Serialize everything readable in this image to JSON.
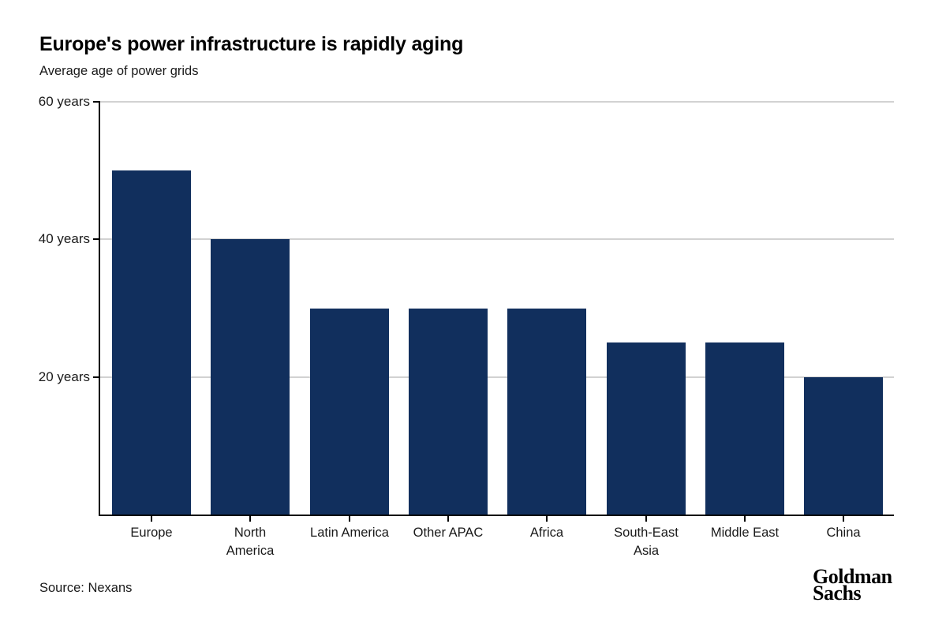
{
  "header": {
    "title": "Europe's power infrastructure is rapidly aging",
    "subtitle": "Average age of power grids"
  },
  "chart_data": {
    "type": "bar",
    "title": "Europe's power infrastructure is rapidly aging",
    "subtitle": "Average age of power grids",
    "categories": [
      "Europe",
      "North America",
      "Latin America",
      "Other APAC",
      "Africa",
      "South-East Asia",
      "Middle East",
      "China"
    ],
    "category_label_lines": [
      [
        "Europe"
      ],
      [
        "North",
        "America"
      ],
      [
        "Latin America"
      ],
      [
        "Other APAC"
      ],
      [
        "Africa"
      ],
      [
        "South-East",
        "Asia"
      ],
      [
        "Middle East"
      ],
      [
        "China"
      ]
    ],
    "values": [
      50,
      40,
      30,
      30,
      30,
      25,
      25,
      20
    ],
    "unit": "years",
    "xlabel": "",
    "ylabel": "",
    "ylim": [
      0,
      60
    ],
    "y_ticks": [
      20,
      40,
      60
    ],
    "y_tick_labels": [
      "20 years",
      "40 years",
      "60 years"
    ],
    "grid": true,
    "legend": null,
    "bar_color": "#112f5d",
    "gridline_color": "#d2d2d2",
    "axis_color": "#000000",
    "source": "Source: Nexans"
  },
  "footer": {
    "source": "Source: Nexans",
    "logo": {
      "line1": "Goldman",
      "line2": "Sachs"
    }
  }
}
